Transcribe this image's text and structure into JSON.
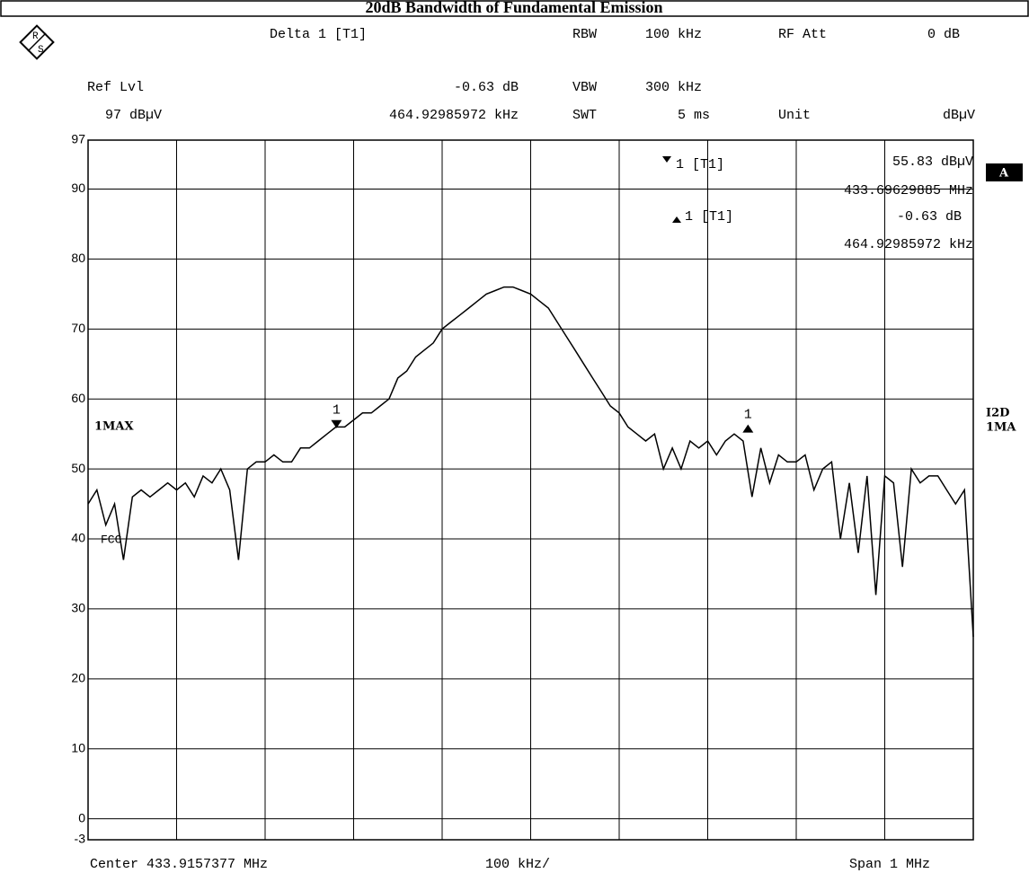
{
  "header": {
    "delta_label": "Delta 1 [T1]",
    "ref_lvl_label": "Ref Lvl",
    "ref_lvl": "97 dBµV",
    "delta_level": "-0.63 dB",
    "delta_freq": "464.92985972 kHz",
    "rbw_label": "RBW",
    "rbw": "100 kHz",
    "vbw_label": "VBW",
    "vbw": "300 kHz",
    "swt_label": "SWT",
    "swt": "5 ms",
    "rf_att_label": "RF Att",
    "rf_att": "0 dB",
    "unit_label": "Unit",
    "unit": "dBµV",
    "logo_r": "R",
    "logo_s": "S"
  },
  "panel": {
    "marker1_label": "1 [T1]",
    "marker1_level": "55.83 dBµV",
    "marker1_freq": "433.69629885 MHz",
    "delta1_label": "1 [T1]",
    "delta1_level": "-0.63 dB",
    "delta1_freq": "464.92985972 kHz",
    "trace_mode": "1MAX",
    "screen": "A",
    "right_1": "I2D",
    "right_2": "1MA",
    "limit_label": "FCC"
  },
  "footer": {
    "center": "Center 433.9157377 MHz",
    "per_div": "100 kHz/",
    "span": "Span 1 MHz"
  },
  "chart_data": {
    "type": "line",
    "title": "20dB Bandwidth of Fundamental Emission",
    "ylim": [
      -3,
      97
    ],
    "yticks": [
      97,
      90,
      80,
      70,
      60,
      50,
      40,
      30,
      20,
      10,
      0,
      -3
    ],
    "xlim": [
      433.4157,
      434.4157
    ],
    "xticks": [
      433.4157,
      433.5157,
      433.6157,
      433.7157,
      433.8157,
      433.9157,
      434.0157,
      434.1157,
      434.2157,
      434.3157,
      434.4157
    ],
    "grid": true,
    "series": [
      {
        "color": "#000000",
        "x": [
          433.4157,
          433.4257,
          433.4357,
          433.4457,
          433.4557,
          433.4657,
          433.4757,
          433.4857,
          433.4957,
          433.5057,
          433.5157,
          433.5257,
          433.5357,
          433.5457,
          433.5557,
          433.5657,
          433.5757,
          433.5857,
          433.5957,
          433.6057,
          433.6157,
          433.6257,
          433.6357,
          433.6457,
          433.6557,
          433.6657,
          433.6757,
          433.6857,
          433.6957,
          433.7057,
          433.7157,
          433.7257,
          433.7357,
          433.7457,
          433.7557,
          433.7657,
          433.7757,
          433.7857,
          433.7957,
          433.8057,
          433.8157,
          433.8257,
          433.8357,
          433.8457,
          433.8557,
          433.8657,
          433.8757,
          433.8857,
          433.8957,
          433.9057,
          433.9157,
          433.9257,
          433.9357,
          433.9457,
          433.9557,
          433.9657,
          433.9757,
          433.9857,
          433.9957,
          434.0057,
          434.0157,
          434.0257,
          434.0357,
          434.0457,
          434.0557,
          434.0657,
          434.0757,
          434.0857,
          434.0957,
          434.1057,
          434.1157,
          434.1257,
          434.1357,
          434.1457,
          434.1557,
          434.1657,
          434.1757,
          434.1857,
          434.1957,
          434.2057,
          434.2157,
          434.2257,
          434.2357,
          434.2457,
          434.2557,
          434.2657,
          434.2757,
          434.2857,
          434.2957,
          434.3057,
          434.3157,
          434.3257,
          434.3357,
          434.3457,
          434.3557,
          434.3657,
          434.3757,
          434.3857,
          434.3957,
          434.4057,
          434.4157
        ],
        "values": [
          45,
          47,
          42,
          45,
          37,
          46,
          47,
          46,
          47,
          48,
          47,
          48,
          46,
          49,
          48,
          50,
          47,
          37,
          50,
          51,
          51,
          52,
          51,
          51,
          53,
          53,
          54,
          55,
          56,
          56,
          57,
          58,
          58,
          59,
          60,
          63,
          64,
          66,
          67,
          68,
          70,
          71,
          72,
          73,
          74,
          75,
          75.5,
          76,
          76,
          75.5,
          75,
          74,
          73,
          71,
          69,
          67,
          65,
          63,
          61,
          59,
          58,
          56,
          55,
          54,
          55,
          50,
          53,
          50,
          54,
          53,
          54,
          52,
          54,
          55,
          54,
          46,
          53,
          48,
          52,
          51,
          51,
          52,
          47,
          50,
          51,
          40,
          48,
          38,
          49,
          32,
          49,
          48,
          36,
          50,
          48,
          49,
          49,
          47,
          45,
          47,
          26
        ]
      }
    ],
    "markers": [
      {
        "label": "1",
        "x": 433.6963,
        "y": 55.83
      },
      {
        "label": "1",
        "x": 434.1612,
        "y": 55.2
      }
    ]
  }
}
